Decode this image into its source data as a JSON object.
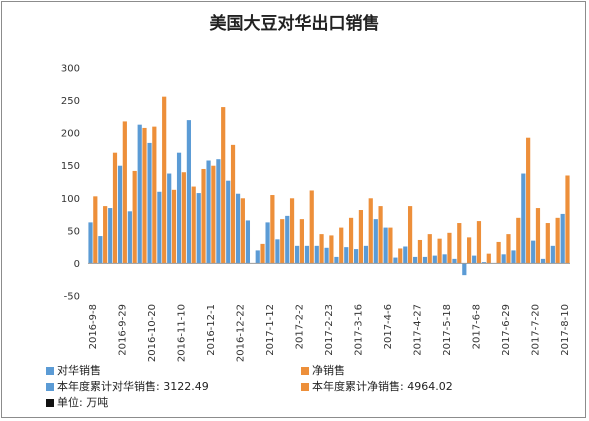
{
  "colors": {
    "china": "#5b9bd5",
    "net": "#ed8f3a",
    "unit": "#111111"
  },
  "chart_data": {
    "type": "bar",
    "title": "美国大豆对华出口销售",
    "ylim": [
      -50,
      300
    ],
    "yticks": [
      300,
      250,
      200,
      150,
      100,
      50,
      0,
      -50
    ],
    "grid": false,
    "legend_position": "bottom",
    "categories": [
      "2016-9-8",
      "2016-9-15",
      "2016-9-22",
      "2016-9-29",
      "2016-10-6",
      "2016-10-13",
      "2016-10-20",
      "2016-10-27",
      "2016-11-3",
      "2016-11-10",
      "2016-11-17",
      "2016-11-24",
      "2016-12-1",
      "2016-12-8",
      "2016-12-15",
      "2016-12-22",
      "2016-12-29",
      "2017-1-5",
      "2017-1-12",
      "2017-1-19",
      "2017-1-26",
      "2017-2-2",
      "2017-2-9",
      "2017-2-16",
      "2017-2-23",
      "2017-3-2",
      "2017-3-9",
      "2017-3-16",
      "2017-3-23",
      "2017-3-30",
      "2017-4-6",
      "2017-4-13",
      "2017-4-20",
      "2017-4-27",
      "2017-5-4",
      "2017-5-11",
      "2017-5-18",
      "2017-5-25",
      "2017-6-1",
      "2017-6-8",
      "2017-6-15",
      "2017-6-22",
      "2017-6-29",
      "2017-7-6",
      "2017-7-13",
      "2017-7-20",
      "2017-7-27",
      "2017-8-3",
      "2017-8-10"
    ],
    "xtick_labels": [
      "2016-9-8",
      "2016-9-29",
      "2016-10-20",
      "2016-11-10",
      "2016-12-1",
      "2016-12-22",
      "2017-1-12",
      "2017-2-2",
      "2017-2-23",
      "2017-3-16",
      "2017-4-6",
      "2017-4-27",
      "2017-5-18",
      "2017-6-8",
      "2017-6-29",
      "2017-7-20",
      "2017-8-10"
    ],
    "series": [
      {
        "name": "对华销售",
        "key": "china",
        "values": [
          63,
          42,
          85,
          150,
          80,
          213,
          185,
          110,
          138,
          170,
          220,
          108,
          158,
          160,
          127,
          107,
          66,
          20,
          63,
          37,
          73,
          27,
          27,
          27,
          24,
          10,
          25,
          22,
          27,
          68,
          55,
          9,
          26,
          10,
          10,
          12,
          14,
          7,
          -18,
          12,
          2,
          0,
          14,
          20,
          138,
          35,
          7,
          27,
          76
        ]
      },
      {
        "name": "净销售",
        "key": "net",
        "values": [
          103,
          88,
          170,
          218,
          142,
          208,
          210,
          256,
          113,
          140,
          118,
          145,
          150,
          240,
          182,
          100,
          0,
          30,
          105,
          68,
          100,
          68,
          112,
          45,
          43,
          55,
          70,
          82,
          100,
          88,
          55,
          23,
          88,
          36,
          45,
          38,
          47,
          62,
          40,
          65,
          15,
          33,
          45,
          70,
          193,
          85,
          62,
          70,
          135
        ]
      }
    ],
    "legend": [
      {
        "label": "对华销售",
        "color_key": "china"
      },
      {
        "label": "净销售",
        "color_key": "net"
      },
      {
        "label": "本年度累计对华销售: 3122.49",
        "color_key": "china"
      },
      {
        "label": "本年度累计净销售: 4964.02",
        "color_key": "net"
      },
      {
        "label": "单位: 万吨",
        "color_key": "unit"
      }
    ]
  }
}
